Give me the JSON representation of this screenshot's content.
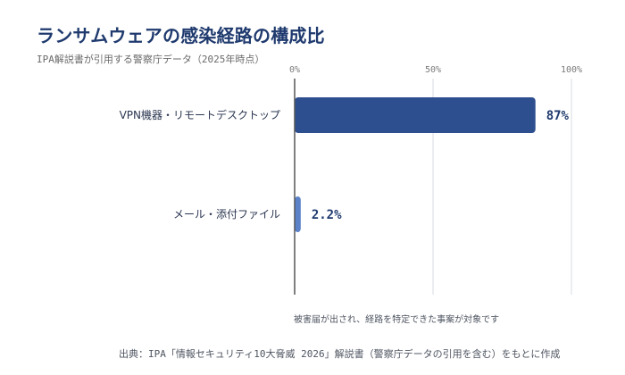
{
  "title": "ランサムウェアの感染経路の構成比",
  "subtitle": "IPA解説書が引用する警察庁データ（2025年時点）",
  "note": "被害届が出され、経路を特定できた事案が対象です",
  "source": "出典：IPA「情報セキュリティ10大脅威 2026」解説書（警察庁データの引用を含む）をもとに作成",
  "colors": {
    "bar_primary": "#2e4f8f",
    "bar_secondary": "#5b82c8",
    "grid": "#d9dbe0",
    "axis": "#555555"
  },
  "chart_data": {
    "type": "bar",
    "orientation": "horizontal",
    "categories": [
      "VPN機器・リモートデスクトップ",
      "メール・添付ファイル"
    ],
    "values": [
      87,
      2.2
    ],
    "value_labels": [
      "87%",
      "2.2%"
    ],
    "xlim": [
      0,
      100
    ],
    "xticks": [
      0,
      50,
      100
    ],
    "xtick_labels": [
      "0%",
      "50%",
      "100%"
    ],
    "xaxis_position": "top",
    "grid": true
  }
}
